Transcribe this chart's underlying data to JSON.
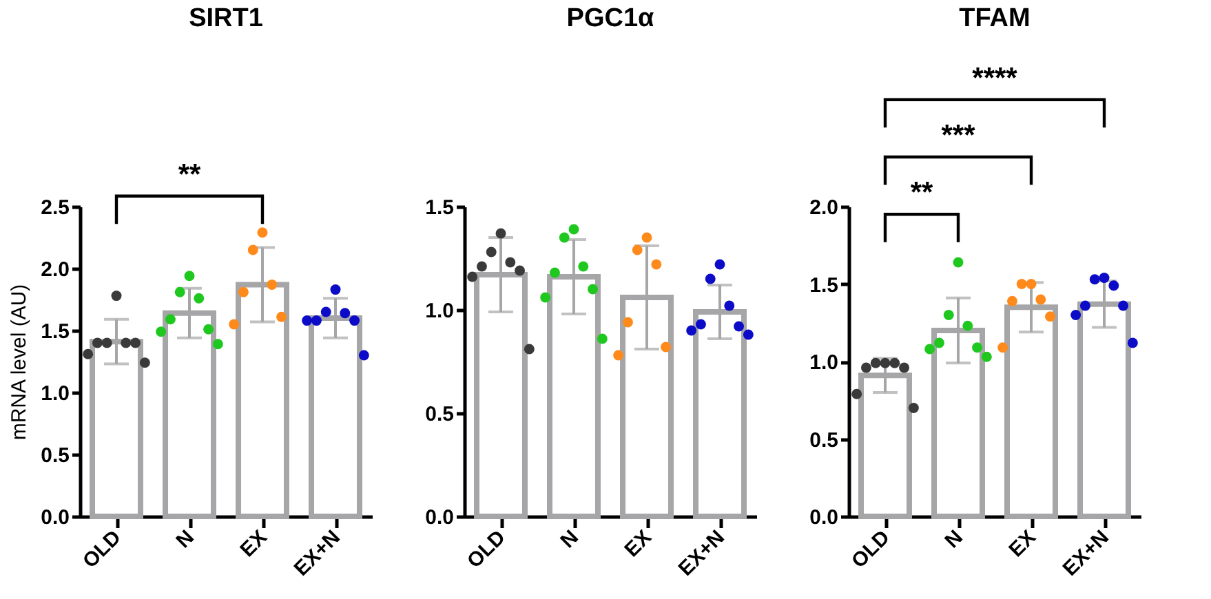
{
  "chart_data": [
    {
      "type": "bar",
      "title": "SIRT1",
      "ylabel": "mRNA level (AU)",
      "categories": [
        "OLD",
        "N",
        "EX",
        "EX+N"
      ],
      "ylim": [
        0,
        2.5
      ],
      "yticks": [
        {
          "value": 0,
          "label": "0.0"
        },
        0.5,
        {
          "value": 1,
          "label": "1.0"
        },
        1.5,
        {
          "value": 2,
          "label": "2.0"
        },
        2.5
      ],
      "series": [
        {
          "type": "bar",
          "color": "#a6a6a8",
          "values": [
            1.41,
            1.64,
            1.87,
            1.6
          ],
          "errors": [
            0.18,
            0.2,
            0.3,
            0.16
          ]
        },
        {
          "type": "scatter",
          "x": [
            "OLD",
            "OLD",
            "OLD",
            "OLD",
            "OLD",
            "OLD",
            "OLD",
            "N",
            "N",
            "N",
            "N",
            "N",
            "N",
            "N",
            "EX",
            "EX",
            "EX",
            "EX",
            "EX",
            "EX",
            "EX+N",
            "EX+N",
            "EX+N",
            "EX+N",
            "EX+N",
            "EX+N",
            "EX+N"
          ],
          "values": [
            1.78,
            1.4,
            1.4,
            1.4,
            1.4,
            1.31,
            1.24,
            1.94,
            1.81,
            1.76,
            1.59,
            1.51,
            1.49,
            1.39,
            2.29,
            2.15,
            1.87,
            1.81,
            1.61,
            1.55,
            1.83,
            1.65,
            1.64,
            1.58,
            1.58,
            1.58,
            1.3
          ],
          "colors": [
            "#3a3a3a",
            "#3a3a3a",
            "#3a3a3a",
            "#3a3a3a",
            "#3a3a3a",
            "#3a3a3a",
            "#3a3a3a",
            "#1ec81e",
            "#1ec81e",
            "#1ec81e",
            "#1ec81e",
            "#1ec81e",
            "#1ec81e",
            "#1ec81e",
            "#ff8a1c",
            "#ff8a1c",
            "#ff8a1c",
            "#ff8a1c",
            "#ff8a1c",
            "#ff8a1c",
            "#0b0bc8",
            "#0b0bc8",
            "#0b0bc8",
            "#0b0bc8",
            "#0b0bc8",
            "#0b0bc8",
            "#0b0bc8"
          ]
        }
      ],
      "annotations": [
        "**"
      ]
    },
    {
      "type": "bar",
      "title": "PGC1α",
      "categories": [
        "OLD",
        "N",
        "EX",
        "EX+N"
      ],
      "ylim": [
        0,
        1.5
      ],
      "yticks": [
        {
          "value": 0,
          "label": "0.0"
        },
        0.5,
        {
          "value": 1,
          "label": "1.0"
        },
        1.5
      ],
      "series": [
        {
          "type": "bar",
          "color": "#a6a6a8",
          "values": [
            1.17,
            1.16,
            1.06,
            0.99
          ],
          "errors": [
            0.18,
            0.18,
            0.25,
            0.13
          ]
        },
        {
          "type": "scatter",
          "x": [
            "OLD",
            "OLD",
            "OLD",
            "OLD",
            "OLD",
            "OLD",
            "OLD",
            "N",
            "N",
            "N",
            "N",
            "N",
            "N",
            "N",
            "EX",
            "EX",
            "EX",
            "EX",
            "EX",
            "EX",
            "EX+N",
            "EX+N",
            "EX+N",
            "EX+N",
            "EX+N",
            "EX+N",
            "EX+N"
          ],
          "values": [
            1.37,
            1.28,
            1.23,
            1.21,
            1.19,
            1.16,
            0.81,
            1.39,
            1.35,
            1.21,
            1.18,
            1.1,
            1.06,
            0.86,
            1.35,
            1.29,
            1.22,
            0.94,
            0.82,
            0.78,
            1.22,
            1.15,
            1.02,
            0.93,
            0.92,
            0.9,
            0.88
          ],
          "colors": [
            "#3a3a3a",
            "#3a3a3a",
            "#3a3a3a",
            "#3a3a3a",
            "#3a3a3a",
            "#3a3a3a",
            "#3a3a3a",
            "#1ec81e",
            "#1ec81e",
            "#1ec81e",
            "#1ec81e",
            "#1ec81e",
            "#1ec81e",
            "#1ec81e",
            "#ff8a1c",
            "#ff8a1c",
            "#ff8a1c",
            "#ff8a1c",
            "#ff8a1c",
            "#ff8a1c",
            "#0b0bc8",
            "#0b0bc8",
            "#0b0bc8",
            "#0b0bc8",
            "#0b0bc8",
            "#0b0bc8",
            "#0b0bc8"
          ]
        }
      ]
    },
    {
      "type": "bar",
      "title": "TFAM",
      "categories": [
        "OLD",
        "N",
        "EX",
        "EX+N"
      ],
      "ylim": [
        0,
        2
      ],
      "yticks": [
        {
          "value": 0,
          "label": "0.0"
        },
        0.5,
        {
          "value": 1,
          "label": "1.0"
        },
        1.5,
        {
          "value": 2,
          "label": "2.0"
        }
      ],
      "series": [
        {
          "type": "bar",
          "color": "#a6a6a8",
          "values": [
            0.91,
            1.2,
            1.35,
            1.37
          ],
          "errors": [
            0.11,
            0.21,
            0.16,
            0.15
          ]
        },
        {
          "type": "scatter",
          "x": [
            "OLD",
            "OLD",
            "OLD",
            "OLD",
            "OLD",
            "OLD",
            "OLD",
            "N",
            "N",
            "N",
            "N",
            "N",
            "N",
            "N",
            "EX",
            "EX",
            "EX",
            "EX",
            "EX",
            "EX",
            "EX+N",
            "EX+N",
            "EX+N",
            "EX+N",
            "EX+N",
            "EX+N",
            "EX+N"
          ],
          "values": [
            0.99,
            0.99,
            0.99,
            0.96,
            0.96,
            0.79,
            0.7,
            1.64,
            1.3,
            1.23,
            1.12,
            1.09,
            1.08,
            1.03,
            1.5,
            1.5,
            1.4,
            1.39,
            1.29,
            1.09,
            1.54,
            1.53,
            1.49,
            1.36,
            1.36,
            1.3,
            1.12
          ],
          "colors": [
            "#3a3a3a",
            "#3a3a3a",
            "#3a3a3a",
            "#3a3a3a",
            "#3a3a3a",
            "#3a3a3a",
            "#3a3a3a",
            "#1ec81e",
            "#1ec81e",
            "#1ec81e",
            "#1ec81e",
            "#1ec81e",
            "#1ec81e",
            "#1ec81e",
            "#ff8a1c",
            "#ff8a1c",
            "#ff8a1c",
            "#ff8a1c",
            "#ff8a1c",
            "#ff8a1c",
            "#0b0bc8",
            "#0b0bc8",
            "#0b0bc8",
            "#0b0bc8",
            "#0b0bc8",
            "#0b0bc8",
            "#0b0bc8"
          ]
        }
      ],
      "annotations": [
        "**",
        "***",
        "****"
      ]
    }
  ]
}
